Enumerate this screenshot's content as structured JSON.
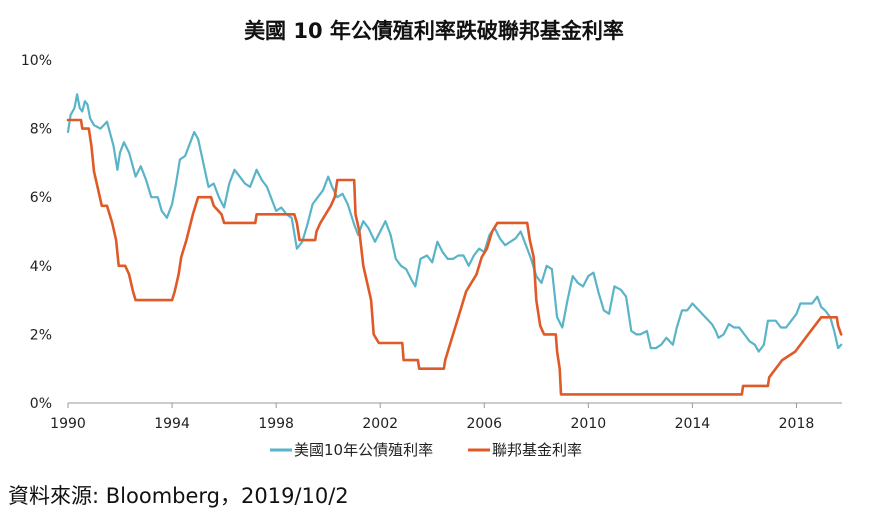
{
  "chart_data": {
    "type": "line",
    "title": "美國 10 年公債殖利率跌破聯邦基金利率",
    "xlabel": "",
    "ylabel": "",
    "xlim": [
      1990,
      2019.75
    ],
    "ylim": [
      0,
      10
    ],
    "x_ticks": [
      1990,
      1994,
      1998,
      2002,
      2006,
      2010,
      2014,
      2018
    ],
    "x_tick_labels": [
      "1990",
      "1994",
      "1998",
      "2002",
      "2006",
      "2010",
      "2014",
      "2018"
    ],
    "y_ticks": [
      0,
      2,
      4,
      6,
      8,
      10
    ],
    "y_tick_labels": [
      "0%",
      "2%",
      "4%",
      "6%",
      "8%",
      "10%"
    ],
    "grid": false,
    "legend_position": "bottom-center",
    "colors": {
      "treasury": "#5ab4c8",
      "fed_funds": "#e05a28",
      "axis": "#999999"
    },
    "series": [
      {
        "name": "美國10年公債殖利率",
        "color": "#5ab4c8",
        "points": [
          [
            1990.0,
            7.9
          ],
          [
            1990.1,
            8.4
          ],
          [
            1990.25,
            8.6
          ],
          [
            1990.35,
            9.0
          ],
          [
            1990.45,
            8.6
          ],
          [
            1990.55,
            8.5
          ],
          [
            1990.65,
            8.8
          ],
          [
            1990.75,
            8.7
          ],
          [
            1990.85,
            8.3
          ],
          [
            1991.0,
            8.1
          ],
          [
            1991.25,
            8.0
          ],
          [
            1991.5,
            8.2
          ],
          [
            1991.75,
            7.5
          ],
          [
            1991.9,
            6.8
          ],
          [
            1992.0,
            7.3
          ],
          [
            1992.15,
            7.6
          ],
          [
            1992.35,
            7.3
          ],
          [
            1992.6,
            6.6
          ],
          [
            1992.8,
            6.9
          ],
          [
            1993.0,
            6.5
          ],
          [
            1993.2,
            6.0
          ],
          [
            1993.45,
            6.0
          ],
          [
            1993.6,
            5.6
          ],
          [
            1993.8,
            5.4
          ],
          [
            1994.0,
            5.8
          ],
          [
            1994.15,
            6.4
          ],
          [
            1994.3,
            7.1
          ],
          [
            1994.5,
            7.2
          ],
          [
            1994.65,
            7.5
          ],
          [
            1994.85,
            7.9
          ],
          [
            1995.0,
            7.7
          ],
          [
            1995.2,
            7.0
          ],
          [
            1995.4,
            6.3
          ],
          [
            1995.6,
            6.4
          ],
          [
            1995.8,
            6.0
          ],
          [
            1996.0,
            5.7
          ],
          [
            1996.2,
            6.4
          ],
          [
            1996.4,
            6.8
          ],
          [
            1996.6,
            6.6
          ],
          [
            1996.8,
            6.4
          ],
          [
            1997.0,
            6.3
          ],
          [
            1997.25,
            6.8
          ],
          [
            1997.45,
            6.5
          ],
          [
            1997.65,
            6.3
          ],
          [
            1997.85,
            5.9
          ],
          [
            1998.0,
            5.6
          ],
          [
            1998.2,
            5.7
          ],
          [
            1998.4,
            5.5
          ],
          [
            1998.6,
            5.4
          ],
          [
            1998.8,
            4.5
          ],
          [
            1999.0,
            4.7
          ],
          [
            1999.2,
            5.2
          ],
          [
            1999.4,
            5.8
          ],
          [
            1999.6,
            6.0
          ],
          [
            1999.8,
            6.2
          ],
          [
            2000.0,
            6.6
          ],
          [
            2000.15,
            6.3
          ],
          [
            2000.35,
            6.0
          ],
          [
            2000.55,
            6.1
          ],
          [
            2000.75,
            5.8
          ],
          [
            2001.0,
            5.2
          ],
          [
            2001.15,
            4.9
          ],
          [
            2001.35,
            5.3
          ],
          [
            2001.55,
            5.1
          ],
          [
            2001.8,
            4.7
          ],
          [
            2002.0,
            5.0
          ],
          [
            2002.2,
            5.3
          ],
          [
            2002.4,
            4.9
          ],
          [
            2002.6,
            4.2
          ],
          [
            2002.8,
            4.0
          ],
          [
            2003.0,
            3.9
          ],
          [
            2003.2,
            3.6
          ],
          [
            2003.35,
            3.4
          ],
          [
            2003.55,
            4.2
          ],
          [
            2003.8,
            4.3
          ],
          [
            2004.0,
            4.1
          ],
          [
            2004.2,
            4.7
          ],
          [
            2004.4,
            4.4
          ],
          [
            2004.6,
            4.2
          ],
          [
            2004.8,
            4.2
          ],
          [
            2005.0,
            4.3
          ],
          [
            2005.2,
            4.3
          ],
          [
            2005.4,
            4.0
          ],
          [
            2005.6,
            4.3
          ],
          [
            2005.8,
            4.5
          ],
          [
            2006.0,
            4.4
          ],
          [
            2006.2,
            4.9
          ],
          [
            2006.4,
            5.1
          ],
          [
            2006.6,
            4.8
          ],
          [
            2006.8,
            4.6
          ],
          [
            2007.0,
            4.7
          ],
          [
            2007.2,
            4.8
          ],
          [
            2007.4,
            5.0
          ],
          [
            2007.6,
            4.6
          ],
          [
            2007.8,
            4.2
          ],
          [
            2008.0,
            3.7
          ],
          [
            2008.2,
            3.5
          ],
          [
            2008.4,
            4.0
          ],
          [
            2008.6,
            3.9
          ],
          [
            2008.8,
            2.5
          ],
          [
            2009.0,
            2.2
          ],
          [
            2009.2,
            3.0
          ],
          [
            2009.4,
            3.7
          ],
          [
            2009.6,
            3.5
          ],
          [
            2009.8,
            3.4
          ],
          [
            2010.0,
            3.7
          ],
          [
            2010.2,
            3.8
          ],
          [
            2010.4,
            3.2
          ],
          [
            2010.6,
            2.7
          ],
          [
            2010.8,
            2.6
          ],
          [
            2011.0,
            3.4
          ],
          [
            2011.25,
            3.3
          ],
          [
            2011.45,
            3.1
          ],
          [
            2011.65,
            2.1
          ],
          [
            2011.85,
            2.0
          ],
          [
            2012.0,
            2.0
          ],
          [
            2012.25,
            2.1
          ],
          [
            2012.4,
            1.6
          ],
          [
            2012.6,
            1.6
          ],
          [
            2012.8,
            1.7
          ],
          [
            2013.0,
            1.9
          ],
          [
            2013.25,
            1.7
          ],
          [
            2013.4,
            2.2
          ],
          [
            2013.6,
            2.7
          ],
          [
            2013.8,
            2.7
          ],
          [
            2014.0,
            2.9
          ],
          [
            2014.25,
            2.7
          ],
          [
            2014.5,
            2.5
          ],
          [
            2014.75,
            2.3
          ],
          [
            2014.9,
            2.1
          ],
          [
            2015.0,
            1.9
          ],
          [
            2015.2,
            2.0
          ],
          [
            2015.4,
            2.3
          ],
          [
            2015.6,
            2.2
          ],
          [
            2015.8,
            2.2
          ],
          [
            2016.0,
            2.0
          ],
          [
            2016.2,
            1.8
          ],
          [
            2016.4,
            1.7
          ],
          [
            2016.55,
            1.5
          ],
          [
            2016.75,
            1.7
          ],
          [
            2016.9,
            2.4
          ],
          [
            2017.0,
            2.4
          ],
          [
            2017.2,
            2.4
          ],
          [
            2017.4,
            2.2
          ],
          [
            2017.6,
            2.2
          ],
          [
            2017.8,
            2.4
          ],
          [
            2018.0,
            2.6
          ],
          [
            2018.15,
            2.9
          ],
          [
            2018.35,
            2.9
          ],
          [
            2018.6,
            2.9
          ],
          [
            2018.8,
            3.1
          ],
          [
            2018.95,
            2.8
          ],
          [
            2019.1,
            2.7
          ],
          [
            2019.3,
            2.5
          ],
          [
            2019.45,
            2.1
          ],
          [
            2019.6,
            1.6
          ],
          [
            2019.72,
            1.7
          ]
        ]
      },
      {
        "name": "聯邦基金利率",
        "color": "#e05a28",
        "points": [
          [
            1990.0,
            8.25
          ],
          [
            1990.5,
            8.25
          ],
          [
            1990.55,
            8.0
          ],
          [
            1990.8,
            8.0
          ],
          [
            1990.9,
            7.5
          ],
          [
            1991.0,
            6.75
          ],
          [
            1991.15,
            6.25
          ],
          [
            1991.3,
            5.75
          ],
          [
            1991.5,
            5.75
          ],
          [
            1991.7,
            5.25
          ],
          [
            1991.85,
            4.75
          ],
          [
            1991.95,
            4.0
          ],
          [
            1992.2,
            4.0
          ],
          [
            1992.35,
            3.75
          ],
          [
            1992.5,
            3.25
          ],
          [
            1992.6,
            3.0
          ],
          [
            1994.0,
            3.0
          ],
          [
            1994.1,
            3.25
          ],
          [
            1994.25,
            3.75
          ],
          [
            1994.35,
            4.25
          ],
          [
            1994.55,
            4.75
          ],
          [
            1994.8,
            5.5
          ],
          [
            1995.0,
            6.0
          ],
          [
            1995.5,
            6.0
          ],
          [
            1995.6,
            5.75
          ],
          [
            1995.9,
            5.5
          ],
          [
            1996.0,
            5.25
          ],
          [
            1997.2,
            5.25
          ],
          [
            1997.25,
            5.5
          ],
          [
            1998.7,
            5.5
          ],
          [
            1998.8,
            5.25
          ],
          [
            1998.9,
            4.75
          ],
          [
            1999.5,
            4.75
          ],
          [
            1999.55,
            5.0
          ],
          [
            1999.7,
            5.25
          ],
          [
            1999.9,
            5.5
          ],
          [
            2000.1,
            5.75
          ],
          [
            2000.25,
            6.0
          ],
          [
            2000.35,
            6.5
          ],
          [
            2001.0,
            6.5
          ],
          [
            2001.05,
            5.5
          ],
          [
            2001.2,
            5.0
          ],
          [
            2001.35,
            4.0
          ],
          [
            2001.5,
            3.5
          ],
          [
            2001.65,
            3.0
          ],
          [
            2001.75,
            2.0
          ],
          [
            2001.95,
            1.75
          ],
          [
            2002.85,
            1.75
          ],
          [
            2002.9,
            1.25
          ],
          [
            2003.45,
            1.25
          ],
          [
            2003.5,
            1.0
          ],
          [
            2004.45,
            1.0
          ],
          [
            2004.5,
            1.25
          ],
          [
            2004.7,
            1.75
          ],
          [
            2004.9,
            2.25
          ],
          [
            2005.1,
            2.75
          ],
          [
            2005.3,
            3.25
          ],
          [
            2005.5,
            3.5
          ],
          [
            2005.7,
            3.75
          ],
          [
            2005.9,
            4.25
          ],
          [
            2006.1,
            4.5
          ],
          [
            2006.3,
            5.0
          ],
          [
            2006.5,
            5.25
          ],
          [
            2007.65,
            5.25
          ],
          [
            2007.75,
            4.75
          ],
          [
            2007.9,
            4.25
          ],
          [
            2008.0,
            3.0
          ],
          [
            2008.15,
            2.25
          ],
          [
            2008.3,
            2.0
          ],
          [
            2008.75,
            2.0
          ],
          [
            2008.8,
            1.5
          ],
          [
            2008.9,
            1.0
          ],
          [
            2008.95,
            0.25
          ],
          [
            2015.9,
            0.25
          ],
          [
            2015.95,
            0.5
          ],
          [
            2016.9,
            0.5
          ],
          [
            2016.95,
            0.75
          ],
          [
            2017.2,
            1.0
          ],
          [
            2017.45,
            1.25
          ],
          [
            2017.95,
            1.5
          ],
          [
            2018.2,
            1.75
          ],
          [
            2018.45,
            2.0
          ],
          [
            2018.7,
            2.25
          ],
          [
            2018.95,
            2.5
          ],
          [
            2019.55,
            2.5
          ],
          [
            2019.6,
            2.25
          ],
          [
            2019.72,
            2.0
          ]
        ]
      }
    ]
  },
  "footer": {
    "source": "資料來源: Bloomberg，2019/10/2"
  }
}
